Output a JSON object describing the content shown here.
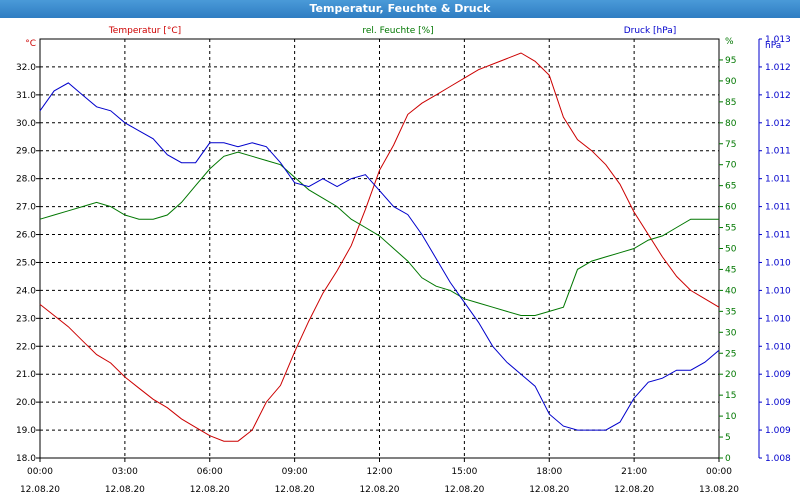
{
  "window": {
    "title": "Temperatur, Feuchte & Druck"
  },
  "colors": {
    "temperature": "#cc0000",
    "humidity": "#007700",
    "pressure": "#0000cc",
    "grid": "#000000"
  },
  "chart_data": {
    "type": "line",
    "title": "Temperatur, Feuchte & Druck",
    "grid": true,
    "x_ticks": [
      {
        "time": "00:00",
        "date": "12.08.20"
      },
      {
        "time": "03:00",
        "date": "12.08.20"
      },
      {
        "time": "06:00",
        "date": "12.08.20"
      },
      {
        "time": "09:00",
        "date": "12.08.20"
      },
      {
        "time": "12:00",
        "date": "12.08.20"
      },
      {
        "time": "15:00",
        "date": "12.08.20"
      },
      {
        "time": "18:00",
        "date": "12.08.20"
      },
      {
        "time": "21:00",
        "date": "12.08.20"
      },
      {
        "time": "00:00",
        "date": "13.08.20"
      }
    ],
    "x_range_hours": [
      0,
      24
    ],
    "axes": {
      "temperature": {
        "label": "Temperatur [°C]",
        "unit": "°C",
        "range": [
          18.0,
          33.0
        ],
        "ticks": [
          "18.0",
          "19.0",
          "20.0",
          "21.0",
          "22.0",
          "23.0",
          "24.0",
          "25.0",
          "26.0",
          "27.0",
          "28.0",
          "29.0",
          "30.0",
          "31.0",
          "32.0"
        ]
      },
      "humidity": {
        "label": "rel. Feuchte [%]",
        "unit": "%",
        "range": [
          0,
          100
        ],
        "ticks": [
          "0",
          "5",
          "10",
          "15",
          "20",
          "25",
          "30",
          "35",
          "40",
          "45",
          "50",
          "55",
          "60",
          "65",
          "70",
          "75",
          "80",
          "85",
          "90",
          "95"
        ]
      },
      "pressure": {
        "label": "Druck [hPa]",
        "unit": "hPa",
        "range": [
          1008,
          1013.25
        ],
        "ticks": [
          "1.008",
          "1.009",
          "1.009",
          "1.009",
          "1.010",
          "1.010",
          "1.010",
          "1.010",
          "1.011",
          "1.011",
          "1.011",
          "1.011",
          "1.012",
          "1.012",
          "1.012",
          "1.013"
        ]
      }
    },
    "series": [
      {
        "name": "Temperatur [°C]",
        "axis": "temperature",
        "x": [
          0,
          0.5,
          1,
          1.5,
          2,
          2.5,
          3,
          3.5,
          4,
          4.5,
          5,
          5.5,
          6,
          6.5,
          7,
          7.5,
          8,
          8.5,
          9,
          9.5,
          10,
          10.5,
          11,
          11.5,
          12,
          12.5,
          13,
          13.5,
          14,
          14.5,
          15,
          15.5,
          16,
          16.5,
          17,
          17.5,
          18,
          18.5,
          19,
          19.5,
          20,
          20.5,
          21,
          21.5,
          22,
          22.5,
          23,
          23.5,
          24
        ],
        "values": [
          23.5,
          23.1,
          22.7,
          22.2,
          21.7,
          21.4,
          20.9,
          20.5,
          20.1,
          19.8,
          19.4,
          19.1,
          18.8,
          18.6,
          18.6,
          19.0,
          20.0,
          20.6,
          21.8,
          22.9,
          23.9,
          24.7,
          25.6,
          26.9,
          28.3,
          29.2,
          30.3,
          30.7,
          31.0,
          31.3,
          31.6,
          31.9,
          32.1,
          32.3,
          32.5,
          32.2,
          31.7,
          30.2,
          29.4,
          29.0,
          28.5,
          27.8,
          26.8,
          26.0,
          25.2,
          24.5,
          24.0,
          23.7,
          23.4
        ]
      },
      {
        "name": "rel. Feuchte [%]",
        "axis": "humidity",
        "x": [
          0,
          0.5,
          1,
          1.5,
          2,
          2.5,
          3,
          3.5,
          4,
          4.5,
          5,
          5.5,
          6,
          6.5,
          7,
          7.5,
          8,
          8.5,
          9,
          9.5,
          10,
          10.5,
          11,
          11.5,
          12,
          12.5,
          13,
          13.5,
          14,
          14.5,
          15,
          15.5,
          16,
          16.5,
          17,
          17.5,
          18,
          18.5,
          19,
          19.5,
          20,
          20.5,
          21,
          21.5,
          22,
          22.5,
          23,
          23.5,
          24
        ],
        "values": [
          57,
          58,
          59,
          60,
          61,
          60,
          58,
          57,
          57,
          58,
          61,
          65,
          69,
          72,
          73,
          72,
          71,
          70,
          67,
          64,
          62,
          60,
          57,
          55,
          53,
          50,
          47,
          43,
          41,
          40,
          38,
          37,
          36,
          35,
          34,
          34,
          35,
          36,
          45,
          47,
          48,
          49,
          50,
          52,
          53,
          55,
          57,
          57,
          57
        ]
      },
      {
        "name": "Druck [hPa]",
        "axis": "pressure",
        "x": [
          0,
          0.5,
          1,
          1.5,
          2,
          2.5,
          3,
          3.5,
          4,
          4.5,
          5,
          5.5,
          6,
          6.5,
          7,
          7.5,
          8,
          8.5,
          9,
          9.5,
          10,
          10.5,
          11,
          11.5,
          12,
          12.5,
          13,
          13.5,
          14,
          14.5,
          15,
          15.5,
          16,
          16.5,
          17,
          17.5,
          18,
          18.5,
          19,
          19.5,
          20,
          20.5,
          21,
          21.5,
          22,
          22.5,
          23,
          23.5,
          24
        ],
        "values": [
          1012.35,
          1012.6,
          1012.7,
          1012.55,
          1012.4,
          1012.35,
          1012.2,
          1012.1,
          1012.0,
          1011.8,
          1011.7,
          1011.7,
          1011.95,
          1011.95,
          1011.9,
          1011.95,
          1011.9,
          1011.7,
          1011.45,
          1011.4,
          1011.5,
          1011.4,
          1011.5,
          1011.55,
          1011.35,
          1011.15,
          1011.05,
          1010.8,
          1010.5,
          1010.2,
          1009.95,
          1009.7,
          1009.4,
          1009.2,
          1009.05,
          1008.9,
          1008.55,
          1008.4,
          1008.35,
          1008.35,
          1008.35,
          1008.45,
          1008.75,
          1008.95,
          1009.0,
          1009.1,
          1009.1,
          1009.2,
          1009.35
        ]
      }
    ]
  }
}
